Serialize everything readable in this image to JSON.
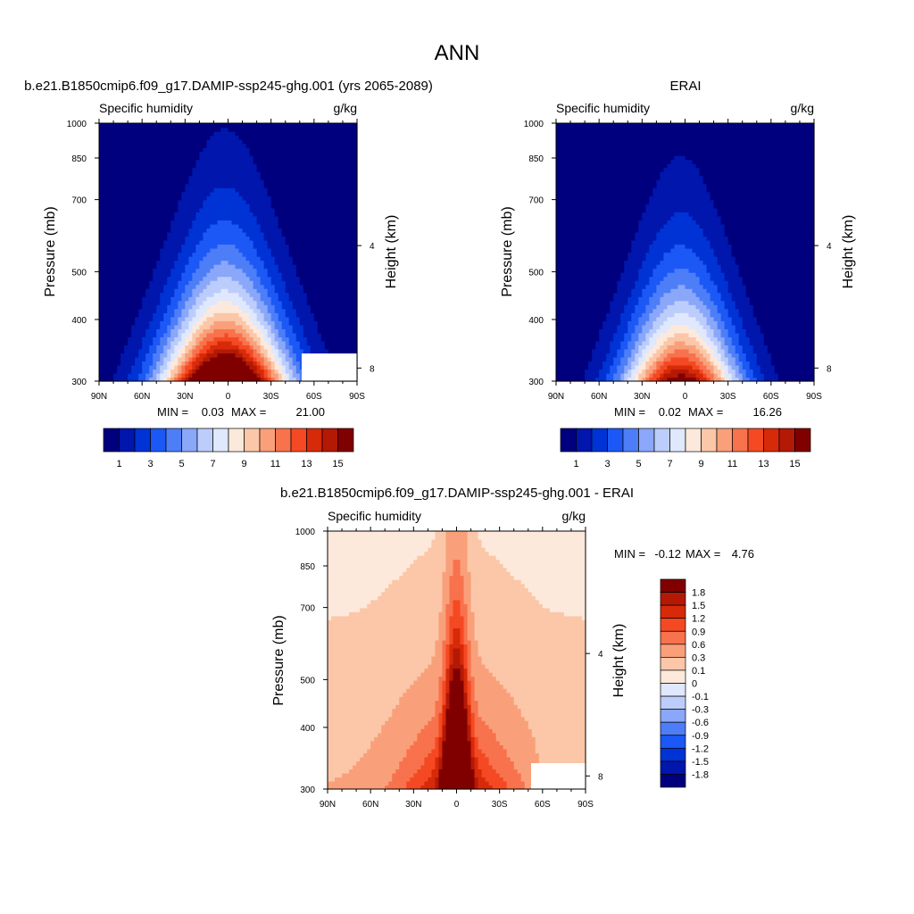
{
  "figure": {
    "title": "ANN"
  },
  "palette": {
    "abs": [
      "#00007f",
      "#0016ac",
      "#0033d5",
      "#1c58f5",
      "#4d7ef8",
      "#8aa7f9",
      "#bccdfb",
      "#dfe8fd",
      "#fde9db",
      "#fbc7a8",
      "#f9a07a",
      "#f7724d",
      "#f54923",
      "#d72a09",
      "#b41906",
      "#800000"
    ],
    "diff": [
      "#00007f",
      "#0016ac",
      "#0033d5",
      "#1c58f5",
      "#4d7ef8",
      "#8aa7f9",
      "#bccdfb",
      "#dfe8fd",
      "#fde9db",
      "#fbc7a8",
      "#f9a07a",
      "#f7724d",
      "#f54923",
      "#d72a09",
      "#b41906",
      "#800000"
    ]
  },
  "chart_data": [
    {
      "type": "heatmap",
      "title": "b.e21.B1850cmip6.f09_g17.DAMIP-ssp245-ghg.001 (yrs 2065-2089)",
      "subtitle_left": "Specific humidity",
      "subtitle_right": "g/kg",
      "xlabel": "",
      "ylabel": "Pressure (mb)",
      "ylabel_right": "Height (km)",
      "x_ticks": [
        "90N",
        "60N",
        "30N",
        "0",
        "30S",
        "60S",
        "90S"
      ],
      "y_ticks": [
        "300",
        "400",
        "500",
        "700",
        "850",
        "1000"
      ],
      "y_right_ticks": [
        "8",
        "4"
      ],
      "xlim": [
        90,
        -90
      ],
      "ylim": [
        1000,
        300
      ],
      "min_label": "MIN =",
      "min_value": "0.03",
      "max_label": "MAX =",
      "max_value": "21.00",
      "surface_max": 21.0,
      "peak_lat": 2,
      "scale_height_km": 1.75,
      "width_deg": 44,
      "contour_levels": [
        1,
        2,
        3,
        4,
        5,
        6,
        7,
        8,
        9,
        10,
        11,
        12,
        13,
        14,
        15
      ],
      "colorbar_labels": [
        "1",
        "3",
        "5",
        "7",
        "9",
        "11",
        "13",
        "15"
      ]
    },
    {
      "type": "heatmap",
      "title": "ERAI",
      "subtitle_left": "Specific humidity",
      "subtitle_right": "g/kg",
      "xlabel": "",
      "ylabel": "Pressure (mb)",
      "ylabel_right": "Height (km)",
      "x_ticks": [
        "90N",
        "60N",
        "30N",
        "0",
        "30S",
        "60S",
        "90S"
      ],
      "y_ticks": [
        "300",
        "400",
        "500",
        "700",
        "850",
        "1000"
      ],
      "y_right_ticks": [
        "8",
        "4"
      ],
      "xlim": [
        90,
        -90
      ],
      "ylim": [
        1000,
        300
      ],
      "min_label": "MIN =",
      "min_value": "0.02",
      "max_label": "MAX =",
      "max_value": "16.26",
      "surface_max": 16.26,
      "peak_lat": 3,
      "scale_height_km": 1.7,
      "width_deg": 40,
      "contour_levels": [
        1,
        2,
        3,
        4,
        5,
        6,
        7,
        8,
        9,
        10,
        11,
        12,
        13,
        14,
        15
      ],
      "colorbar_labels": [
        "1",
        "3",
        "5",
        "7",
        "9",
        "11",
        "13",
        "15"
      ]
    },
    {
      "type": "heatmap",
      "title": "b.e21.B1850cmip6.f09_g17.DAMIP-ssp245-ghg.001 - ERAI",
      "subtitle_left": "Specific humidity",
      "subtitle_right": "g/kg",
      "xlabel": "",
      "ylabel": "Pressure (mb)",
      "ylabel_right": "Height (km)",
      "x_ticks": [
        "90N",
        "60N",
        "30N",
        "0",
        "30S",
        "60S",
        "90S"
      ],
      "y_ticks": [
        "300",
        "400",
        "500",
        "700",
        "850",
        "1000"
      ],
      "y_right_ticks": [
        "8",
        "4"
      ],
      "xlim": [
        90,
        -90
      ],
      "ylim": [
        1000,
        300
      ],
      "min_label": "MIN =",
      "min_value": "-0.12",
      "max_label": "MAX =",
      "max_value": "4.76",
      "contour_levels": [
        -1.8,
        -1.5,
        -1.2,
        -0.9,
        -0.6,
        -0.3,
        -0.1,
        0,
        0.1,
        0.3,
        0.6,
        0.9,
        1.2,
        1.5,
        1.8
      ],
      "colorbar_labels": [
        "1.8",
        "1.5",
        "1.2",
        "0.9",
        "0.6",
        "0.3",
        "0.1",
        "0",
        "-0.1",
        "-0.3",
        "-0.6",
        "-0.9",
        "-1.2",
        "-1.5",
        "-1.8"
      ]
    }
  ]
}
